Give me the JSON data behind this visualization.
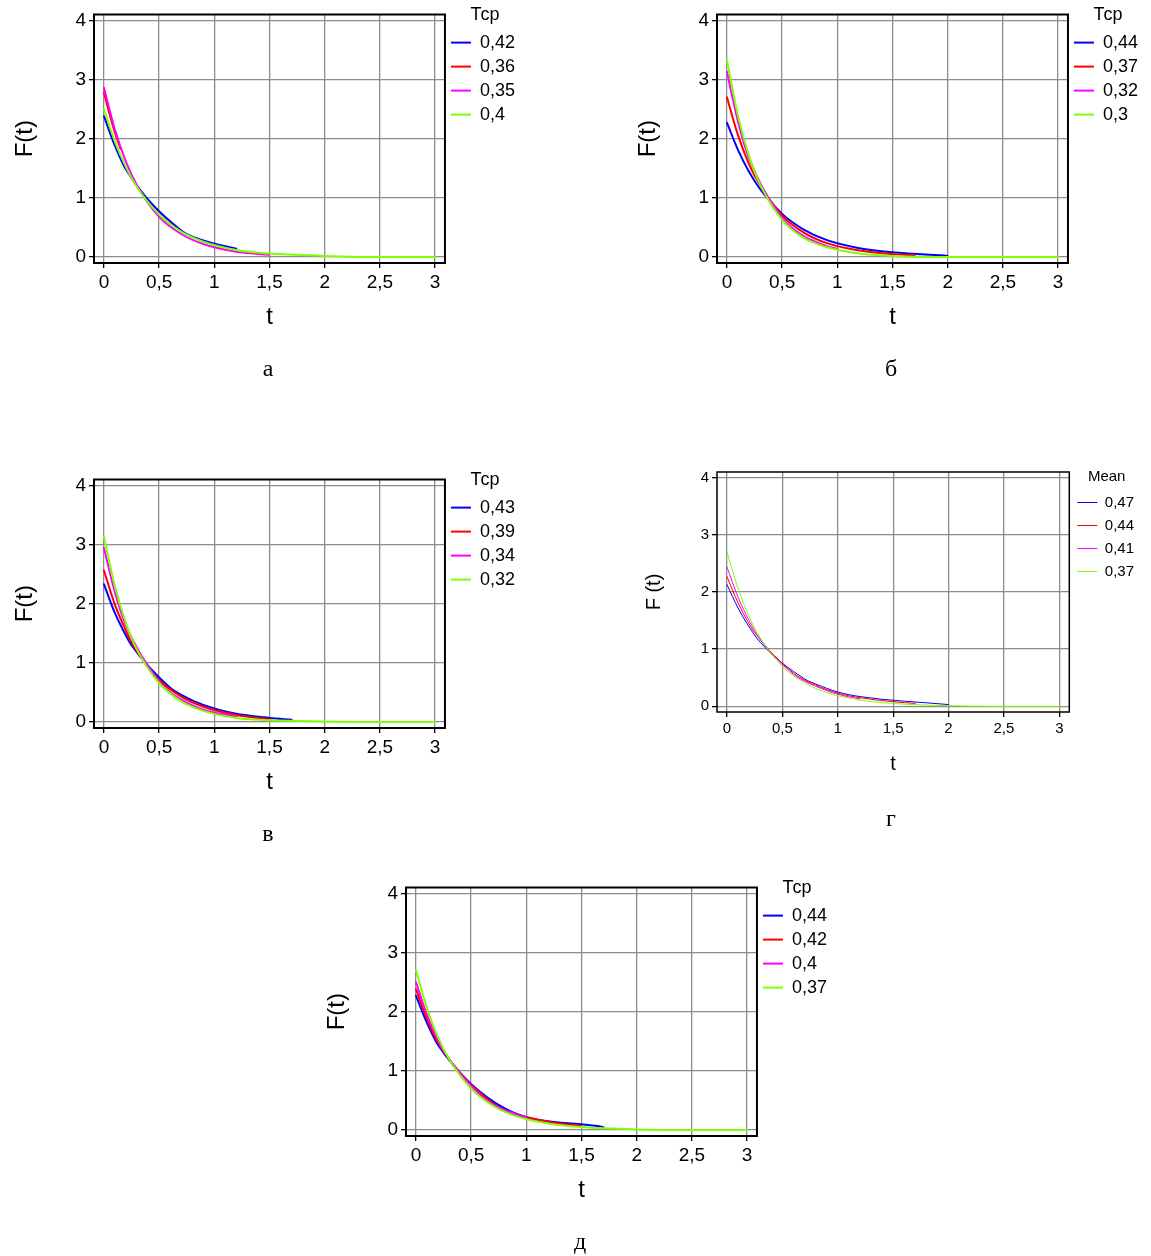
{
  "chart_data": [
    {
      "type": "line",
      "xlabel": "t",
      "ylabel": "F(t)",
      "legend_title": "Тср",
      "legend": "top right",
      "grid": true,
      "marker": "none",
      "line_style": "solid",
      "annotations": [
        "а"
      ],
      "xlim": [
        -0.09,
        3.09
      ],
      "ylim": [
        -0.1,
        4.1
      ],
      "xticks": [
        0,
        {
          "value": 0.5,
          "label": "0,5"
        },
        1,
        {
          "value": 1.5,
          "label": "1,5"
        },
        2,
        {
          "value": 2.5,
          "label": "2,5"
        },
        3
      ],
      "yticks": [
        0,
        1,
        2,
        3,
        4
      ],
      "series": [
        {
          "name": "0,42",
          "color": "#0000ff",
          "x": [
            0,
            0.1,
            0.2,
            0.7,
            0.9,
            1.2
          ],
          "values": [
            2.38,
            1.88,
            1.48,
            0.45,
            0.28,
            0.14
          ]
        },
        {
          "name": "0,36",
          "color": "#ff0000",
          "x": [
            0,
            0.05,
            0.1,
            0.15
          ],
          "values": [
            2.78,
            2.42,
            2.1,
            1.83
          ]
        },
        {
          "name": "0,35",
          "color": "#ff00ff",
          "x": [
            0,
            0.1,
            0.2,
            0.3,
            0.5,
            0.7,
            0.9,
            1.2,
            1.5
          ],
          "values": [
            2.86,
            2.15,
            1.61,
            1.21,
            0.68,
            0.39,
            0.22,
            0.09,
            0.04
          ]
        },
        {
          "name": "0,4",
          "color": "#80ff00",
          "x": [
            0,
            0.1,
            0.2,
            0.3,
            0.5,
            0.7,
            0.9,
            1.2,
            1.5,
            2,
            2.5,
            3
          ],
          "values": [
            2.5,
            1.95,
            1.52,
            1.18,
            0.72,
            0.43,
            0.26,
            0.12,
            0.06,
            0.02,
            0,
            0
          ]
        }
      ]
    },
    {
      "type": "line",
      "xlabel": "t",
      "ylabel": "F(t)",
      "legend_title": "Тср",
      "legend": "top right",
      "grid": true,
      "marker": "none",
      "line_style": "solid",
      "annotations": [
        "б"
      ],
      "xlim": [
        -0.09,
        3.09
      ],
      "ylim": [
        -0.1,
        4.1
      ],
      "xticks": [
        0,
        {
          "value": 0.5,
          "label": "0,5"
        },
        1,
        {
          "value": 1.5,
          "label": "1,5"
        },
        2,
        {
          "value": 2.5,
          "label": "2,5"
        },
        3
      ],
      "yticks": [
        0,
        1,
        2,
        3,
        4
      ],
      "series": [
        {
          "name": "0,44",
          "color": "#0000ff",
          "x": [
            0,
            0.1,
            0.2,
            0.3,
            0.5,
            0.7,
            0.9,
            1.2,
            1.5,
            2
          ],
          "values": [
            2.27,
            1.81,
            1.44,
            1.15,
            0.73,
            0.46,
            0.29,
            0.15,
            0.08,
            0.02
          ]
        },
        {
          "name": "0,37",
          "color": "#ff0000",
          "x": [
            0,
            0.1,
            0.2,
            0.25,
            0.5,
            0.7,
            0.9,
            1.2,
            1.5,
            1.7
          ],
          "values": [
            2.7,
            2.06,
            1.57,
            1.38,
            0.7,
            0.41,
            0.24,
            0.11,
            0.05,
            0.03
          ]
        },
        {
          "name": "0,32",
          "color": "#ff00ff",
          "x": [
            0,
            0.1,
            0.2,
            0.5,
            0.6,
            0.7,
            0.8,
            0.9,
            1
          ],
          "values": [
            3.13,
            2.29,
            1.67,
            0.66,
            0.48,
            0.35,
            0.26,
            0.19,
            0.14
          ]
        },
        {
          "name": "0,3",
          "color": "#80ff00",
          "x": [
            0,
            0.1,
            0.2,
            0.3,
            0.5,
            0.7,
            0.9,
            1.2,
            1.5,
            2,
            2.5,
            3
          ],
          "values": [
            3.33,
            2.39,
            1.71,
            1.23,
            0.63,
            0.32,
            0.17,
            0.06,
            0.02,
            0,
            0,
            0
          ]
        }
      ]
    },
    {
      "type": "line",
      "xlabel": "t",
      "ylabel": "F(t)",
      "legend_title": "Тср",
      "legend": "top right",
      "grid": true,
      "marker": "none",
      "line_style": "solid",
      "annotations": [
        "в"
      ],
      "xlim": [
        -0.09,
        3.09
      ],
      "ylim": [
        -0.1,
        4.1
      ],
      "xticks": [
        0,
        {
          "value": 0.5,
          "label": "0,5"
        },
        1,
        {
          "value": 1.5,
          "label": "1,5"
        },
        2,
        {
          "value": 2.5,
          "label": "2,5"
        },
        3
      ],
      "yticks": [
        0,
        1,
        2,
        3,
        4
      ],
      "series": [
        {
          "name": "0,43",
          "color": "#0000ff",
          "x": [
            0,
            0.1,
            0.2,
            0.25,
            0.6,
            0.7,
            0.9,
            1.2,
            1.5,
            1.7
          ],
          "values": [
            2.33,
            1.84,
            1.46,
            1.3,
            0.58,
            0.46,
            0.29,
            0.14,
            0.07,
            0.04
          ]
        },
        {
          "name": "0,39",
          "color": "#ff0000",
          "x": [
            0,
            0.1,
            0.2,
            0.25,
            0.5,
            0.7,
            0.9,
            1.2,
            1.5
          ],
          "values": [
            2.56,
            1.98,
            1.54,
            1.35,
            0.71,
            0.43,
            0.26,
            0.12,
            0.05
          ]
        },
        {
          "name": "0,34",
          "color": "#ff00ff",
          "x": [
            0,
            0.1,
            0.2,
            0.5,
            0.6,
            0.7,
            0.9,
            1.2
          ],
          "values": [
            2.94,
            2.19,
            1.63,
            0.68,
            0.5,
            0.38,
            0.21,
            0.09
          ]
        },
        {
          "name": "0,32",
          "color": "#80ff00",
          "x": [
            0,
            0.1,
            0.2,
            0.3,
            0.5,
            0.7,
            0.9,
            1.2,
            1.5,
            2,
            2.5,
            3
          ],
          "values": [
            3.13,
            2.29,
            1.67,
            1.22,
            0.66,
            0.35,
            0.19,
            0.07,
            0.03,
            0.01,
            0,
            0
          ]
        }
      ]
    },
    {
      "type": "line",
      "xlabel": "t",
      "ylabel": "F (t)",
      "legend_title": "Mean",
      "legend": "top right",
      "grid": true,
      "marker": "none",
      "line_style": "solid",
      "annotations": [
        "г"
      ],
      "xlim": [
        -0.09,
        3.09
      ],
      "ylim": [
        -0.1,
        4.1
      ],
      "xticks": [
        0,
        {
          "value": 0.5,
          "label": "0,5"
        },
        1,
        {
          "value": 1.5,
          "label": "1,5"
        },
        2,
        {
          "value": 2.5,
          "label": "2,5"
        },
        3
      ],
      "yticks": [
        0,
        1,
        2,
        3,
        4
      ],
      "series": [
        {
          "name": "0,47",
          "color": "#0000ff",
          "x": [
            0,
            0.1,
            0.2,
            0.3,
            0.7,
            0.8,
            1,
            1.2,
            2
          ],
          "values": [
            2.13,
            1.72,
            1.39,
            1.12,
            0.48,
            0.39,
            0.25,
            0.17,
            0.03
          ]
        },
        {
          "name": "0,44",
          "color": "#ff0000",
          "x": [
            0,
            0.1,
            0.2,
            0.25,
            0.6,
            0.8,
            1,
            1.2,
            1.5,
            1.7
          ],
          "values": [
            2.27,
            1.81,
            1.44,
            1.29,
            0.58,
            0.37,
            0.23,
            0.15,
            0.08,
            0.05
          ]
        },
        {
          "name": "0,41",
          "color": "#ff00ff",
          "x": [
            0,
            0.1,
            0.2,
            0.3,
            0.6,
            0.7,
            0.8,
            1,
            1.2
          ],
          "values": [
            2.44,
            1.91,
            1.5,
            1.17,
            0.56,
            0.44,
            0.35,
            0.21,
            0.13
          ]
        },
        {
          "name": "0,37",
          "color": "#80ff00",
          "x": [
            0,
            0.1,
            0.2,
            0.3,
            0.5,
            0.7,
            0.9,
            1.2,
            1.5,
            2,
            2.5,
            3
          ],
          "values": [
            2.7,
            2.06,
            1.57,
            1.2,
            0.7,
            0.41,
            0.24,
            0.11,
            0.05,
            0.01,
            0,
            0
          ]
        }
      ]
    },
    {
      "type": "line",
      "xlabel": "t",
      "ylabel": "F(t)",
      "legend_title": "Тср",
      "legend": "top right",
      "grid": true,
      "marker": "none",
      "line_style": "solid",
      "annotations": [
        "д"
      ],
      "xlim": [
        -0.09,
        3.09
      ],
      "ylim": [
        -0.1,
        4.1
      ],
      "xticks": [
        0,
        {
          "value": 0.5,
          "label": "0,5"
        },
        1,
        {
          "value": 1.5,
          "label": "1,5"
        },
        2,
        {
          "value": 2.5,
          "label": "2,5"
        },
        3
      ],
      "yticks": [
        0,
        1,
        2,
        3,
        4
      ],
      "series": [
        {
          "name": "0,44",
          "color": "#0000ff",
          "x": [
            0,
            0.1,
            0.2,
            0.8,
            1.7
          ],
          "values": [
            2.27,
            1.81,
            1.44,
            0.37,
            0.05
          ]
        },
        {
          "name": "0,42",
          "color": "#ff0000",
          "x": [
            0,
            0.1,
            0.2,
            0.7,
            1.2,
            1.5
          ],
          "values": [
            2.38,
            1.88,
            1.48,
            0.45,
            0.14,
            0.07
          ]
        },
        {
          "name": "0,4",
          "color": "#ff00ff",
          "x": [
            0,
            0.1,
            0.2,
            0.25,
            0.6,
            0.7,
            0.8,
            1
          ],
          "values": [
            2.5,
            1.95,
            1.52,
            1.34,
            0.56,
            0.43,
            0.34,
            0.21
          ]
        },
        {
          "name": "0,37",
          "color": "#80ff00",
          "x": [
            0,
            0.1,
            0.2,
            0.3,
            0.5,
            0.7,
            0.9,
            1.2,
            1.5,
            2,
            2.5,
            3
          ],
          "values": [
            2.7,
            2.06,
            1.57,
            1.2,
            0.7,
            0.41,
            0.24,
            0.11,
            0.05,
            0.01,
            0,
            0
          ]
        }
      ]
    }
  ]
}
